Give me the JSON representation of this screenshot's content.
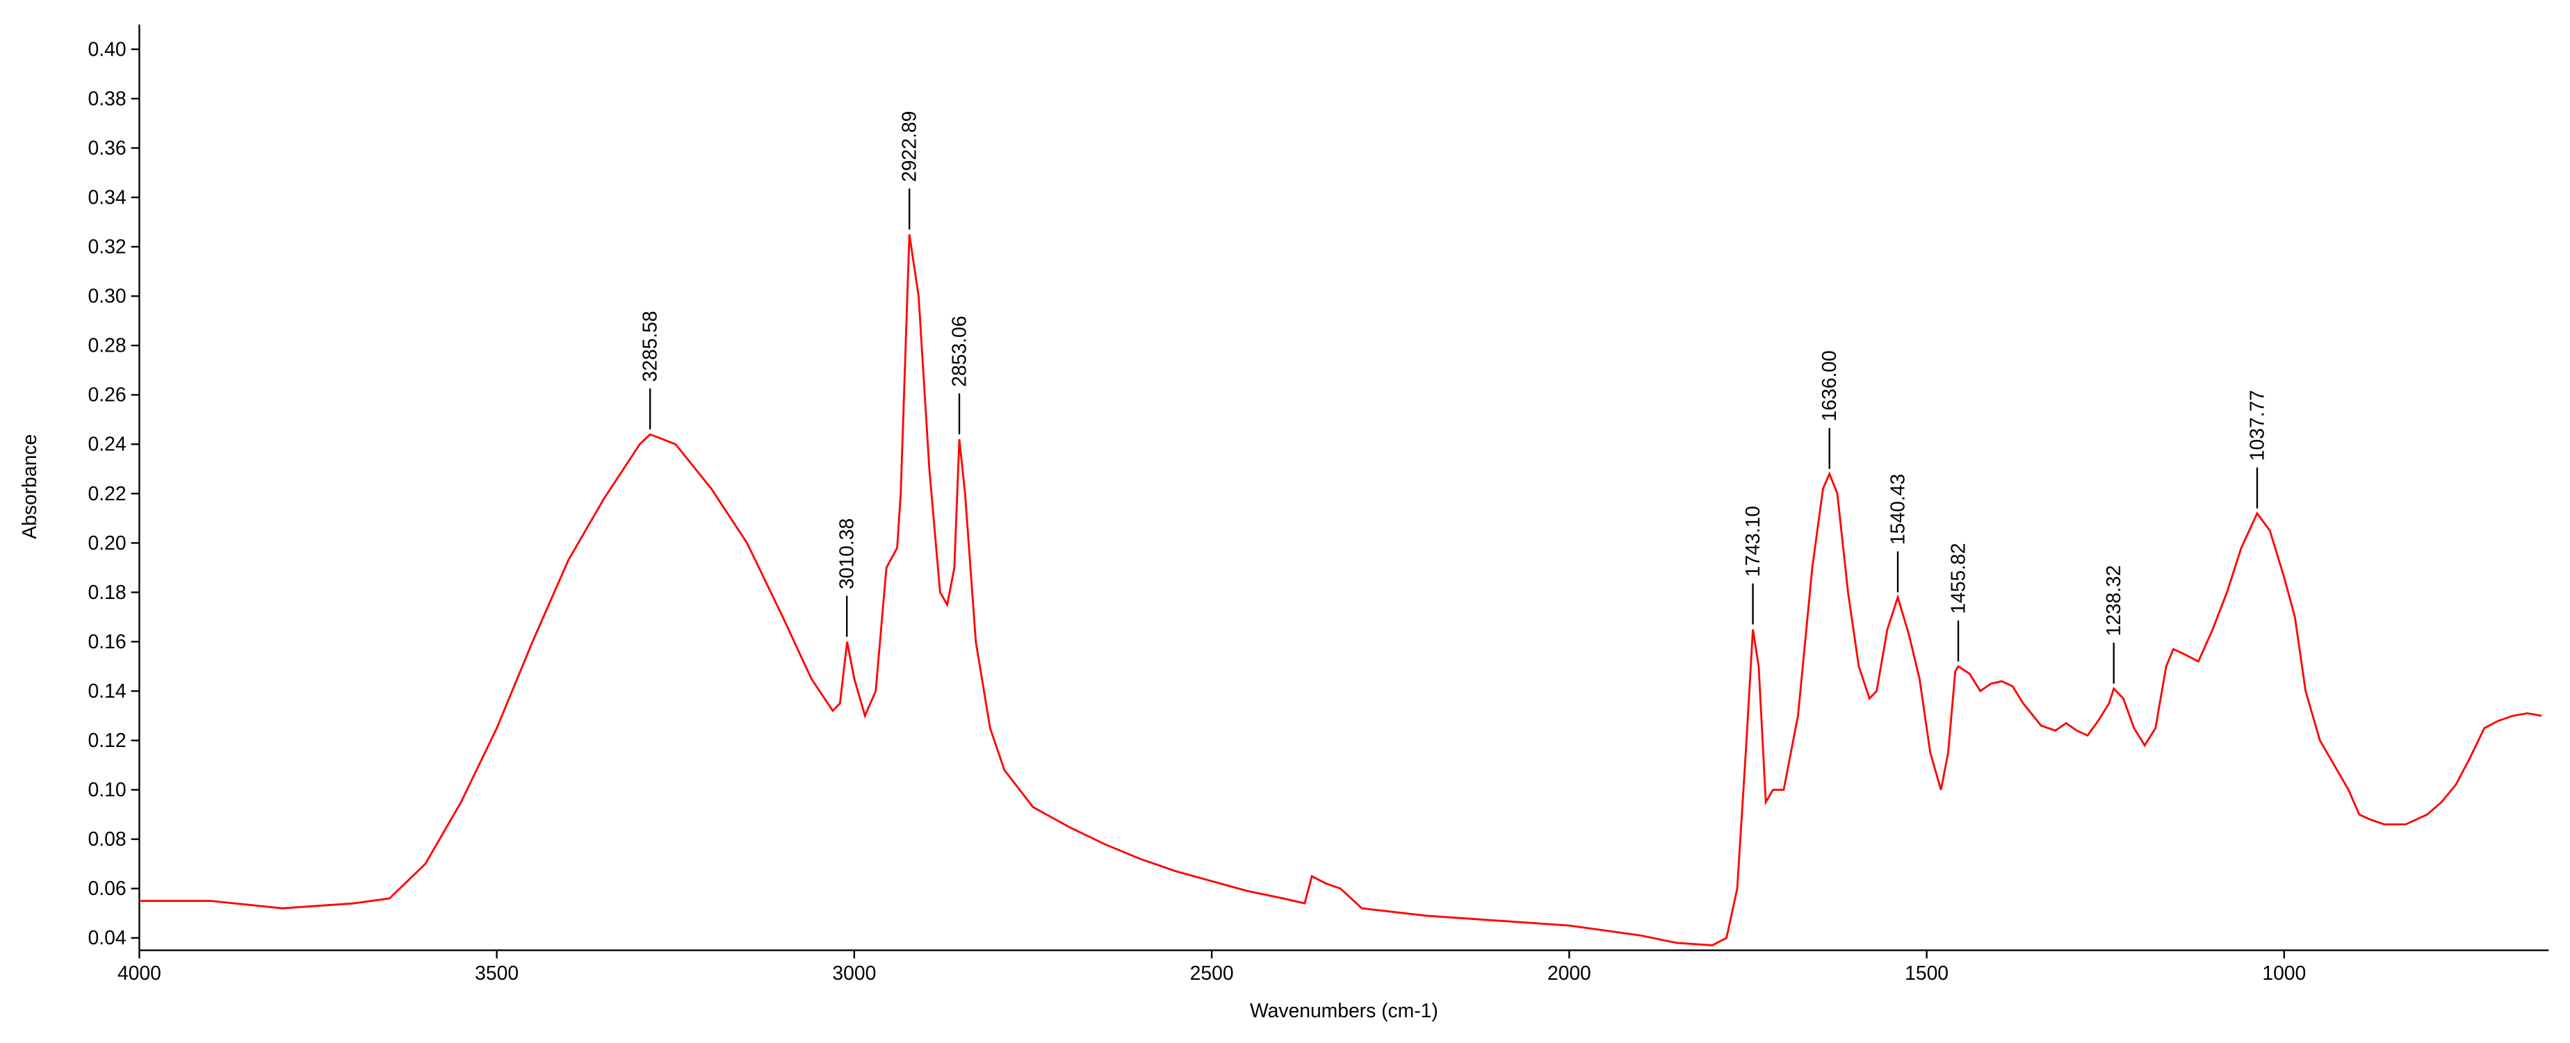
{
  "chart_data": {
    "type": "line",
    "xlabel": "Wavenumbers (cm-1)",
    "ylabel": "Absorbance",
    "xlim": [
      4000,
      630
    ],
    "ylim": [
      0.035,
      0.41
    ],
    "xticks": [
      4000,
      3500,
      3000,
      2500,
      2000,
      1500,
      1000
    ],
    "yticks": [
      {
        "value": 0.04,
        "label": "0.04"
      },
      {
        "value": 0.06,
        "label": "0.06"
      },
      {
        "value": 0.08,
        "label": "0.08"
      },
      {
        "value": 0.1,
        "label": "0.10"
      },
      {
        "value": 0.12,
        "label": "0.12"
      },
      {
        "value": 0.14,
        "label": "0.14"
      },
      {
        "value": 0.16,
        "label": "0.16"
      },
      {
        "value": 0.18,
        "label": "0.18"
      },
      {
        "value": 0.2,
        "label": "0.20"
      },
      {
        "value": 0.22,
        "label": "0.22"
      },
      {
        "value": 0.24,
        "label": "0.24"
      },
      {
        "value": 0.26,
        "label": "0.26"
      },
      {
        "value": 0.28,
        "label": "0.28"
      },
      {
        "value": 0.3,
        "label": "0.30"
      },
      {
        "value": 0.32,
        "label": "0.32"
      },
      {
        "value": 0.34,
        "label": "0.34"
      },
      {
        "value": 0.36,
        "label": "0.36"
      },
      {
        "value": 0.38,
        "label": "0.38"
      },
      {
        "value": 0.4,
        "label": "0.40"
      }
    ],
    "x": [
      4000,
      3900,
      3800,
      3750,
      3700,
      3650,
      3600,
      3550,
      3500,
      3450,
      3400,
      3350,
      3300,
      3285.58,
      3250,
      3200,
      3150,
      3100,
      3060,
      3030,
      3020,
      3010,
      3000,
      2985,
      2970,
      2955,
      2940,
      2935,
      2922.89,
      2910,
      2895,
      2880,
      2870,
      2860,
      2853.06,
      2845,
      2830,
      2810,
      2790,
      2750,
      2700,
      2650,
      2600,
      2550,
      2500,
      2450,
      2400,
      2370,
      2360,
      2340,
      2320,
      2290,
      2200,
      2100,
      2000,
      1900,
      1850,
      1800,
      1780,
      1765,
      1752,
      1743.1,
      1735,
      1725,
      1715,
      1700,
      1680,
      1660,
      1645,
      1636,
      1625,
      1610,
      1595,
      1580,
      1570,
      1555,
      1540.43,
      1525,
      1510,
      1495,
      1480,
      1470,
      1460,
      1455.82,
      1440,
      1425,
      1410,
      1395,
      1380,
      1365,
      1340,
      1320,
      1305,
      1290,
      1275,
      1260,
      1245,
      1238.32,
      1225,
      1210,
      1195,
      1180,
      1165,
      1155,
      1140,
      1120,
      1100,
      1080,
      1060,
      1037.77,
      1020,
      1000,
      985,
      970,
      950,
      930,
      910,
      895,
      880,
      860,
      830,
      800,
      780,
      760,
      740,
      720,
      700,
      680,
      660,
      640
    ],
    "series": [
      {
        "color": "#ff0000",
        "values": [
          0.055,
          0.055,
          0.052,
          0.053,
          0.054,
          0.056,
          0.07,
          0.095,
          0.125,
          0.16,
          0.193,
          0.218,
          0.24,
          0.244,
          0.24,
          0.222,
          0.2,
          0.17,
          0.145,
          0.132,
          0.135,
          0.16,
          0.145,
          0.13,
          0.14,
          0.19,
          0.198,
          0.22,
          0.325,
          0.3,
          0.23,
          0.18,
          0.175,
          0.19,
          0.242,
          0.22,
          0.16,
          0.125,
          0.108,
          0.093,
          0.085,
          0.078,
          0.072,
          0.067,
          0.063,
          0.059,
          0.056,
          0.054,
          0.065,
          0.062,
          0.06,
          0.052,
          0.049,
          0.047,
          0.045,
          0.041,
          0.038,
          0.037,
          0.04,
          0.06,
          0.12,
          0.165,
          0.15,
          0.095,
          0.1,
          0.1,
          0.13,
          0.19,
          0.222,
          0.228,
          0.22,
          0.18,
          0.15,
          0.137,
          0.14,
          0.165,
          0.178,
          0.163,
          0.145,
          0.115,
          0.1,
          0.115,
          0.148,
          0.15,
          0.147,
          0.14,
          0.143,
          0.144,
          0.142,
          0.135,
          0.126,
          0.124,
          0.127,
          0.124,
          0.122,
          0.128,
          0.135,
          0.141,
          0.137,
          0.125,
          0.118,
          0.125,
          0.15,
          0.157,
          0.155,
          0.152,
          0.165,
          0.18,
          0.198,
          0.212,
          0.205,
          0.186,
          0.17,
          0.14,
          0.12,
          0.11,
          0.1,
          0.09,
          0.088,
          0.086,
          0.086,
          0.09,
          0.095,
          0.102,
          0.113,
          0.125,
          0.128,
          0.13,
          0.131,
          0.13
        ]
      }
    ],
    "annotations": [
      {
        "x": 3285.58,
        "y": 0.244,
        "label": "3285.58"
      },
      {
        "x": 3010.38,
        "y": 0.16,
        "label": "3010.38"
      },
      {
        "x": 2922.89,
        "y": 0.325,
        "label": "2922.89"
      },
      {
        "x": 2853.06,
        "y": 0.242,
        "label": "2853.06"
      },
      {
        "x": 1743.1,
        "y": 0.165,
        "label": "1743.10"
      },
      {
        "x": 1636,
        "y": 0.228,
        "label": "1636.00"
      },
      {
        "x": 1540.43,
        "y": 0.178,
        "label": "1540.43"
      },
      {
        "x": 1455.82,
        "y": 0.15,
        "label": "1455.82"
      },
      {
        "x": 1238.32,
        "y": 0.141,
        "label": "1238.32"
      },
      {
        "x": 1037.77,
        "y": 0.212,
        "label": "1037.77"
      }
    ]
  }
}
